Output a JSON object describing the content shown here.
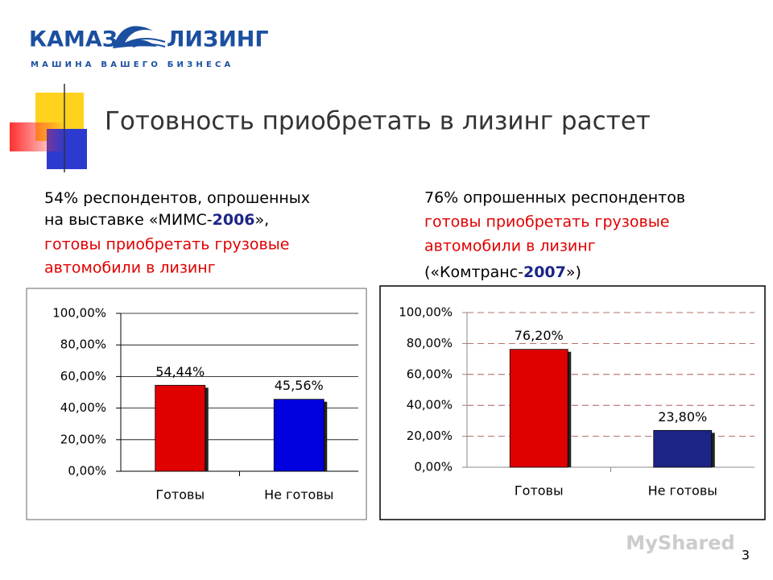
{
  "logo": {
    "left": "КАМАЗ",
    "right": "ЛИЗИНГ",
    "tagline": "МАШИНА ВАШЕГО БИЗНЕСА"
  },
  "title": "Готовность приобретать в лизинг растет",
  "captions": [
    [
      "54% респондентов, опрошенных",
      "на выставке «МИМС-",
      "2006",
      "»,",
      "готовы приобретать грузовые",
      "автомобили в лизинг"
    ],
    [
      "76% опрошенных респондентов",
      "готовы приобретать грузовые",
      "автомобили в лизинг",
      "(«Комтранс-",
      "2007",
      "»)"
    ]
  ],
  "chart_data": [
    {
      "type": "bar",
      "categories": [
        "Готовы",
        "Не готовы"
      ],
      "values": [
        54.44,
        45.56
      ],
      "value_labels": [
        "54,44%",
        "45,56%"
      ],
      "colors": [
        "#e00000",
        "#0000e0"
      ],
      "ylim": [
        0,
        100
      ],
      "yticks": [
        {
          "value": 0,
          "label": "0,00%"
        },
        {
          "value": 20,
          "label": "20,00%"
        },
        {
          "value": 40,
          "label": "40,00%"
        },
        {
          "value": 60,
          "label": "60,00%"
        },
        {
          "value": 80,
          "label": "80,00%"
        },
        {
          "value": 100,
          "label": "100,00%"
        }
      ],
      "grid": "solid"
    },
    {
      "type": "bar",
      "categories": [
        "Готовы",
        "Не готовы"
      ],
      "values": [
        76.2,
        23.8
      ],
      "value_labels": [
        "76,20%",
        "23,80%"
      ],
      "colors": [
        "#e00000",
        "#1c2585"
      ],
      "ylim": [
        0,
        100
      ],
      "yticks": [
        {
          "value": 0,
          "label": "0,00%"
        },
        {
          "value": 20,
          "label": "20,00%"
        },
        {
          "value": 40,
          "label": "40,00%"
        },
        {
          "value": 60,
          "label": "60,00%"
        },
        {
          "value": 80,
          "label": "80,00%"
        },
        {
          "value": 100,
          "label": "100,00%"
        }
      ],
      "grid": "dashed"
    }
  ],
  "watermark": "MyShared",
  "page_number": "3"
}
